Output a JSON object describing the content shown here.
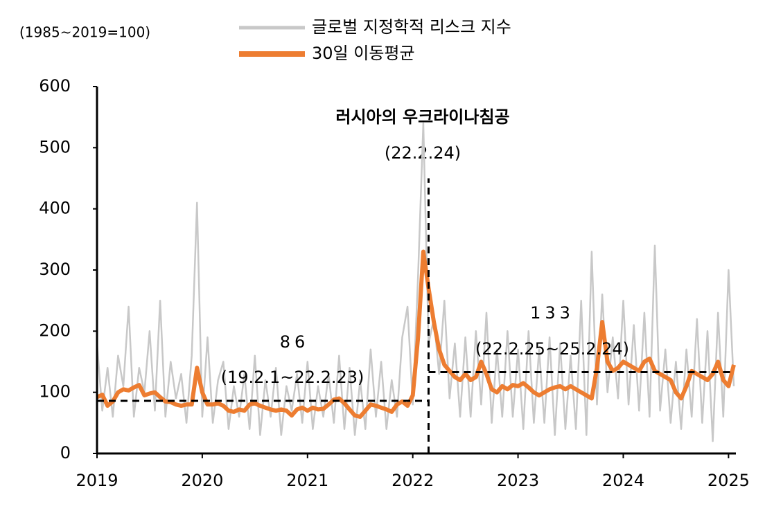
{
  "chart_data": {
    "type": "line",
    "unit_label": "(1985~2019=100)",
    "xlim": [
      2019,
      2025.07
    ],
    "xticks": [
      2019,
      2020,
      2021,
      2022,
      2023,
      2024,
      2025
    ],
    "ylim": [
      0,
      600
    ],
    "yticks": [
      0,
      100,
      200,
      300,
      400,
      500,
      600
    ],
    "legend": "top",
    "x": [
      2019.0,
      2019.05,
      2019.1,
      2019.15,
      2019.2,
      2019.25,
      2019.3,
      2019.35,
      2019.4,
      2019.45,
      2019.5,
      2019.55,
      2019.6,
      2019.65,
      2019.7,
      2019.75,
      2019.8,
      2019.85,
      2019.9,
      2019.95,
      2020.0,
      2020.05,
      2020.1,
      2020.15,
      2020.2,
      2020.25,
      2020.3,
      2020.35,
      2020.4,
      2020.45,
      2020.5,
      2020.55,
      2020.6,
      2020.65,
      2020.7,
      2020.75,
      2020.8,
      2020.85,
      2020.9,
      2020.95,
      2021.0,
      2021.05,
      2021.1,
      2021.15,
      2021.2,
      2021.25,
      2021.3,
      2021.35,
      2021.4,
      2021.45,
      2021.5,
      2021.55,
      2021.6,
      2021.65,
      2021.7,
      2021.75,
      2021.8,
      2021.85,
      2021.9,
      2021.95,
      2022.0,
      2022.05,
      2022.1,
      2022.15,
      2022.2,
      2022.25,
      2022.3,
      2022.35,
      2022.4,
      2022.45,
      2022.5,
      2022.55,
      2022.6,
      2022.65,
      2022.7,
      2022.75,
      2022.8,
      2022.85,
      2022.9,
      2022.95,
      2023.0,
      2023.05,
      2023.1,
      2023.15,
      2023.2,
      2023.25,
      2023.3,
      2023.35,
      2023.4,
      2023.45,
      2023.5,
      2023.55,
      2023.6,
      2023.65,
      2023.7,
      2023.75,
      2023.8,
      2023.85,
      2023.9,
      2023.95,
      2024.0,
      2024.05,
      2024.1,
      2024.15,
      2024.2,
      2024.25,
      2024.3,
      2024.35,
      2024.4,
      2024.45,
      2024.5,
      2024.55,
      2024.6,
      2024.65,
      2024.7,
      2024.75,
      2024.8,
      2024.85,
      2024.9,
      2024.95,
      2025.0,
      2025.05
    ],
    "series": [
      {
        "name": "글로벌 지정학적 리스크 지수",
        "color": "#c8c8c8",
        "values": [
          180,
          70,
          140,
          60,
          160,
          110,
          240,
          60,
          140,
          100,
          200,
          70,
          250,
          60,
          150,
          90,
          130,
          50,
          160,
          410,
          60,
          190,
          50,
          120,
          150,
          40,
          110,
          60,
          130,
          40,
          160,
          30,
          120,
          60,
          140,
          30,
          110,
          70,
          130,
          50,
          150,
          40,
          110,
          60,
          130,
          50,
          160,
          40,
          140,
          30,
          120,
          40,
          170,
          60,
          150,
          40,
          120,
          60,
          190,
          240,
          80,
          290,
          540,
          180,
          220,
          130,
          250,
          90,
          180,
          60,
          190,
          60,
          200,
          80,
          230,
          50,
          170,
          60,
          200,
          60,
          170,
          40,
          200,
          50,
          170,
          50,
          190,
          30,
          180,
          40,
          160,
          40,
          250,
          30,
          330,
          80,
          260,
          100,
          190,
          90,
          250,
          80,
          210,
          70,
          230,
          60,
          340,
          70,
          170,
          50,
          150,
          40,
          170,
          60,
          220,
          50,
          200,
          20,
          230,
          60,
          300,
          110
        ]
      },
      {
        "name": "30일 이동평균",
        "color": "#ed7d31",
        "values": [
          92,
          96,
          78,
          85,
          100,
          105,
          103,
          108,
          112,
          95,
          98,
          100,
          92,
          85,
          84,
          80,
          78,
          80,
          80,
          140,
          100,
          80,
          80,
          82,
          78,
          70,
          68,
          72,
          70,
          80,
          82,
          78,
          75,
          72,
          70,
          72,
          70,
          62,
          72,
          75,
          70,
          75,
          72,
          73,
          80,
          88,
          90,
          82,
          72,
          62,
          60,
          70,
          80,
          78,
          75,
          72,
          68,
          80,
          85,
          78,
          95,
          190,
          330,
          270,
          215,
          170,
          145,
          135,
          125,
          120,
          130,
          120,
          125,
          150,
          130,
          105,
          100,
          110,
          105,
          112,
          110,
          115,
          108,
          100,
          95,
          100,
          105,
          108,
          110,
          105,
          110,
          105,
          100,
          95,
          90,
          140,
          215,
          150,
          135,
          140,
          150,
          145,
          140,
          135,
          150,
          155,
          135,
          130,
          125,
          120,
          100,
          90,
          110,
          135,
          130,
          125,
          120,
          130,
          150,
          120,
          110,
          145
        ]
      }
    ],
    "ref_lines": [
      {
        "value": 86,
        "x": [
          2019,
          2022.15
        ],
        "period": "(19.2.1~22.2.23)"
      },
      {
        "value": 133,
        "x": [
          2022.15,
          2025.05
        ],
        "period": "(22.2.25~25.2.24)"
      }
    ],
    "event": {
      "x": 2022.15,
      "y": [
        0,
        450
      ],
      "label": "러시아의 우크라이나침공",
      "date": "(22.2.24)"
    }
  }
}
